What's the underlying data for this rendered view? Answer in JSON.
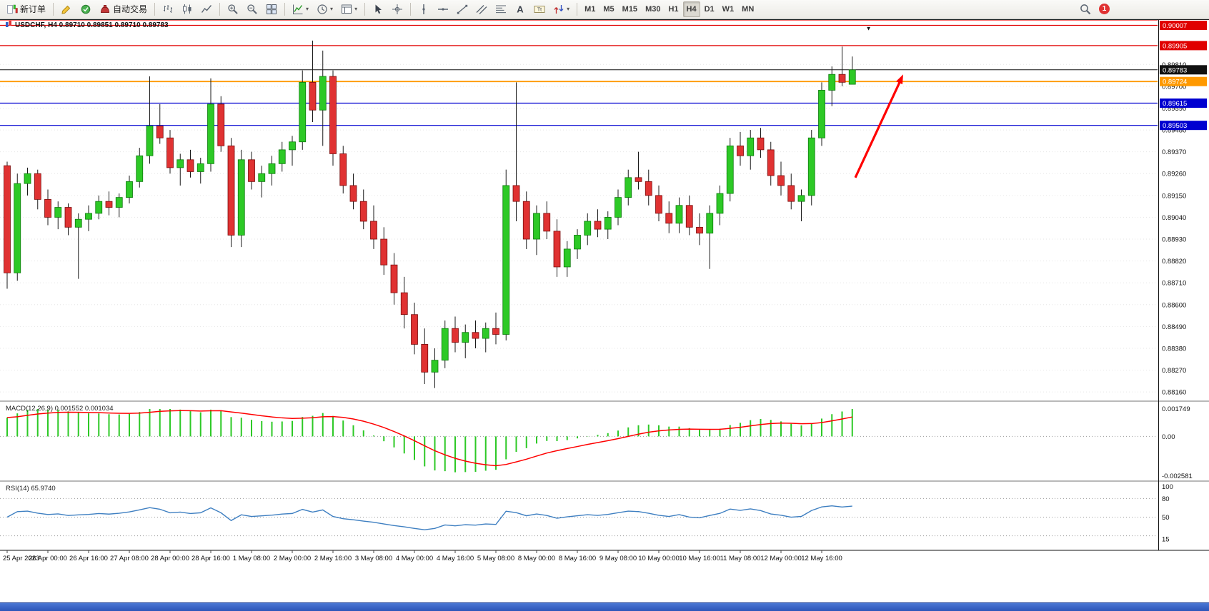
{
  "toolbar": {
    "notification_count": "1",
    "groups": [
      {
        "items": [
          {
            "name": "new-order-button",
            "icon": "new-order",
            "label": "新订单"
          }
        ]
      },
      {
        "items": [
          {
            "name": "metaeditor-button",
            "icon": "metaeditor"
          },
          {
            "name": "market-watch-button",
            "icon": "market"
          },
          {
            "name": "auto-trading-button",
            "icon": "autotrade",
            "label": "自动交易"
          }
        ]
      },
      {
        "items": [
          {
            "name": "bar-chart-mode-button",
            "icon": "bar-chart"
          },
          {
            "name": "candlestick-mode-button",
            "icon": "candlestick"
          },
          {
            "name": "line-chart-mode-button",
            "icon": "line-chart"
          }
        ]
      },
      {
        "items": [
          {
            "name": "zoom-in-button",
            "icon": "zoom-in"
          },
          {
            "name": "zoom-out-button",
            "icon": "zoom-out"
          },
          {
            "name": "tile-windows-button",
            "icon": "tile-windows"
          }
        ]
      },
      {
        "items": [
          {
            "name": "indicators-dropdown",
            "icon": "indicators",
            "caret": true
          },
          {
            "name": "periods-dropdown",
            "icon": "periods",
            "caret": true
          },
          {
            "name": "templates-dropdown",
            "icon": "templates",
            "caret": true
          }
        ]
      },
      {
        "items": [
          {
            "name": "cursor-tool-button",
            "icon": "cursor"
          },
          {
            "name": "crosshair-tool-button",
            "icon": "crosshair"
          }
        ]
      },
      {
        "items": [
          {
            "name": "vertical-line-tool",
            "icon": "vertical-line"
          },
          {
            "name": "horizontal-line-tool",
            "icon": "horizontal-line"
          },
          {
            "name": "trendline-tool",
            "icon": "trendline"
          },
          {
            "name": "channel-tool",
            "icon": "channel"
          },
          {
            "name": "fibonacci-tool",
            "icon": "fibonacci"
          },
          {
            "name": "text-tool",
            "icon": "text"
          },
          {
            "name": "label-tool",
            "icon": "text-label"
          },
          {
            "name": "arrows-tool",
            "icon": "arrows",
            "caret": true
          }
        ]
      },
      {
        "items": [
          {
            "name": "tf-m1-button",
            "label": "M1",
            "tf": true
          },
          {
            "name": "tf-m5-button",
            "label": "M5",
            "tf": true
          },
          {
            "name": "tf-m15-button",
            "label": "M15",
            "tf": true
          },
          {
            "name": "tf-m30-button",
            "label": "M30",
            "tf": true
          },
          {
            "name": "tf-h1-button",
            "label": "H1",
            "tf": true
          },
          {
            "name": "tf-h4-button",
            "label": "H4",
            "tf": true,
            "active": true
          },
          {
            "name": "tf-d1-button",
            "label": "D1",
            "tf": true
          },
          {
            "name": "tf-w1-button",
            "label": "W1",
            "tf": true
          },
          {
            "name": "tf-mn-button",
            "label": "MN",
            "tf": true
          }
        ]
      },
      {
        "align": "right",
        "items": [
          {
            "name": "search-button",
            "icon": "search"
          },
          {
            "name": "notifications-button",
            "badge": "1"
          }
        ]
      }
    ]
  },
  "chart": {
    "title": "USDCHF, H4 0.89710 0.89851 0.89710 0.89783",
    "y_ticks": [
      "0.89810",
      "0.89700",
      "0.89590",
      "0.89480",
      "0.89370",
      "0.89260",
      "0.89150",
      "0.89040",
      "0.88930",
      "0.88820",
      "0.88710",
      "0.88600",
      "0.88490",
      "0.88380",
      "0.88270",
      "0.88160"
    ]
  },
  "macd_panel": {
    "title": "MACD(12,26,9)",
    "value_main": "0.001552",
    "value_signal": "0.001034",
    "y_ticks": [
      "0.001749",
      "0.00",
      "-0.002581"
    ]
  },
  "rsi_panel": {
    "title": "RSI(14)",
    "value": "65.9740",
    "y_ticks": [
      "100",
      "80",
      "50",
      "15"
    ]
  },
  "chart_data": [
    {
      "type": "candlestick",
      "title": "USDCHF H4",
      "ylim": [
        0.88121,
        0.90034
      ],
      "x_tick_step": 4,
      "x_tick_labels": [
        "25 Apr 2023",
        "26 Apr 00:00",
        "26 Apr 16:00",
        "27 Apr 08:00",
        "28 Apr 00:00",
        "28 Apr 16:00",
        "1 May 08:00",
        "2 May 00:00",
        "2 May 16:00",
        "3 May 08:00",
        "4 May 00:00",
        "4 May 16:00",
        "5 May 08:00",
        "8 May 00:00",
        "8 May 16:00",
        "9 May 08:00",
        "10 May 00:00",
        "10 May 16:00",
        "11 May 08:00",
        "12 May 00:00",
        "12 May 16:00"
      ],
      "colors": {
        "up": "#2dc926",
        "down": "#e03232",
        "wick": "#1a1a1a"
      },
      "levels": [
        {
          "price": 0.90034,
          "label": "",
          "color": "#e00000"
        },
        {
          "price": 0.90007,
          "label": "0.90007",
          "color": "#e00000"
        },
        {
          "price": 0.89905,
          "label": "0.89905",
          "color": "#e00000"
        },
        {
          "price": 0.89783,
          "label": "0.89783",
          "color": "#111111",
          "role": "current"
        },
        {
          "price": 0.89724,
          "label": "0.89724",
          "color": "#ff9900"
        },
        {
          "price": 0.89615,
          "label": "0.89615",
          "color": "#0000d0"
        },
        {
          "price": 0.89503,
          "label": "0.89503",
          "color": "#0000d0"
        }
      ],
      "annotations": [
        {
          "type": "arrow",
          "from": {
            "bar": 83.3,
            "price": 0.8924
          },
          "to": {
            "bar": 88.0,
            "price": 0.8976
          },
          "color": "#ff0000"
        },
        {
          "type": "marker",
          "glyph": "▼",
          "bar": 84.6,
          "price": 0.9001
        }
      ],
      "ohlc": [
        [
          0.893,
          0.8932,
          0.8868,
          0.8876
        ],
        [
          0.8876,
          0.8926,
          0.8872,
          0.8921
        ],
        [
          0.8921,
          0.8929,
          0.8915,
          0.8926
        ],
        [
          0.8926,
          0.8928,
          0.8908,
          0.8913
        ],
        [
          0.8913,
          0.8918,
          0.89,
          0.8904
        ],
        [
          0.8904,
          0.8912,
          0.8898,
          0.8909
        ],
        [
          0.8909,
          0.8911,
          0.8895,
          0.8899
        ],
        [
          0.8899,
          0.8906,
          0.8873,
          0.8903
        ],
        [
          0.8903,
          0.891,
          0.8897,
          0.8906
        ],
        [
          0.8906,
          0.8915,
          0.8903,
          0.8912
        ],
        [
          0.8912,
          0.8917,
          0.8905,
          0.8909
        ],
        [
          0.8909,
          0.8916,
          0.8904,
          0.8914
        ],
        [
          0.8914,
          0.8925,
          0.8911,
          0.8922
        ],
        [
          0.8922,
          0.8939,
          0.8919,
          0.8935
        ],
        [
          0.8935,
          0.8975,
          0.8931,
          0.895
        ],
        [
          0.895,
          0.8961,
          0.8941,
          0.8944
        ],
        [
          0.8944,
          0.8948,
          0.8926,
          0.8929
        ],
        [
          0.8929,
          0.8936,
          0.892,
          0.8933
        ],
        [
          0.8933,
          0.8938,
          0.8924,
          0.8927
        ],
        [
          0.8927,
          0.8934,
          0.8921,
          0.8931
        ],
        [
          0.8931,
          0.8974,
          0.8927,
          0.8961
        ],
        [
          0.8961,
          0.8965,
          0.8937,
          0.894
        ],
        [
          0.894,
          0.8944,
          0.8889,
          0.8895
        ],
        [
          0.8895,
          0.8938,
          0.8889,
          0.8933
        ],
        [
          0.8933,
          0.8937,
          0.8918,
          0.8922
        ],
        [
          0.8922,
          0.893,
          0.8914,
          0.8926
        ],
        [
          0.8926,
          0.8935,
          0.892,
          0.8931
        ],
        [
          0.8931,
          0.8942,
          0.8927,
          0.8938
        ],
        [
          0.8938,
          0.8945,
          0.893,
          0.8942
        ],
        [
          0.8942,
          0.8978,
          0.8938,
          0.8972
        ],
        [
          0.8972,
          0.8993,
          0.8952,
          0.8958
        ],
        [
          0.8958,
          0.8988,
          0.894,
          0.8975
        ],
        [
          0.8975,
          0.8978,
          0.893,
          0.8936
        ],
        [
          0.8936,
          0.894,
          0.8916,
          0.892
        ],
        [
          0.892,
          0.8926,
          0.8908,
          0.8912
        ],
        [
          0.8912,
          0.8918,
          0.8898,
          0.8902
        ],
        [
          0.8902,
          0.891,
          0.8888,
          0.8893
        ],
        [
          0.8893,
          0.8899,
          0.8875,
          0.888
        ],
        [
          0.888,
          0.8886,
          0.886,
          0.8866
        ],
        [
          0.8866,
          0.8874,
          0.8848,
          0.8855
        ],
        [
          0.8855,
          0.8861,
          0.8835,
          0.884
        ],
        [
          0.884,
          0.8848,
          0.882,
          0.8826
        ],
        [
          0.8826,
          0.8838,
          0.8818,
          0.8832
        ],
        [
          0.8832,
          0.8852,
          0.8828,
          0.8848
        ],
        [
          0.8848,
          0.8854,
          0.8836,
          0.8841
        ],
        [
          0.8841,
          0.885,
          0.8833,
          0.8846
        ],
        [
          0.8846,
          0.8852,
          0.8838,
          0.8843
        ],
        [
          0.8843,
          0.8851,
          0.8836,
          0.8848
        ],
        [
          0.8848,
          0.8856,
          0.884,
          0.8845
        ],
        [
          0.8845,
          0.8928,
          0.8842,
          0.892
        ],
        [
          0.892,
          0.8972,
          0.8902,
          0.8912
        ],
        [
          0.8912,
          0.8917,
          0.8888,
          0.8893
        ],
        [
          0.8893,
          0.891,
          0.8885,
          0.8906
        ],
        [
          0.8906,
          0.8912,
          0.8893,
          0.8897
        ],
        [
          0.8897,
          0.8903,
          0.8874,
          0.8879
        ],
        [
          0.8879,
          0.8892,
          0.8874,
          0.8888
        ],
        [
          0.8888,
          0.8898,
          0.8883,
          0.8895
        ],
        [
          0.8895,
          0.8906,
          0.889,
          0.8902
        ],
        [
          0.8902,
          0.8908,
          0.8894,
          0.8898
        ],
        [
          0.8898,
          0.8907,
          0.8893,
          0.8904
        ],
        [
          0.8904,
          0.8918,
          0.89,
          0.8914
        ],
        [
          0.8914,
          0.8928,
          0.891,
          0.8924
        ],
        [
          0.8924,
          0.8937,
          0.8918,
          0.8922
        ],
        [
          0.8922,
          0.8928,
          0.891,
          0.8915
        ],
        [
          0.8915,
          0.892,
          0.8902,
          0.8906
        ],
        [
          0.8906,
          0.8912,
          0.8896,
          0.8901
        ],
        [
          0.8901,
          0.8914,
          0.8896,
          0.891
        ],
        [
          0.891,
          0.8915,
          0.8895,
          0.8899
        ],
        [
          0.8899,
          0.8906,
          0.889,
          0.8896
        ],
        [
          0.8896,
          0.891,
          0.8878,
          0.8906
        ],
        [
          0.8906,
          0.892,
          0.89,
          0.8916
        ],
        [
          0.8916,
          0.8944,
          0.8912,
          0.894
        ],
        [
          0.894,
          0.8947,
          0.893,
          0.8935
        ],
        [
          0.8935,
          0.8948,
          0.8928,
          0.8944
        ],
        [
          0.8944,
          0.8949,
          0.8934,
          0.8938
        ],
        [
          0.8938,
          0.8942,
          0.892,
          0.8925
        ],
        [
          0.8925,
          0.8932,
          0.8915,
          0.892
        ],
        [
          0.892,
          0.8926,
          0.8908,
          0.8912
        ],
        [
          0.8912,
          0.8918,
          0.8902,
          0.8915
        ],
        [
          0.8915,
          0.8948,
          0.891,
          0.8944
        ],
        [
          0.8944,
          0.8972,
          0.894,
          0.8968
        ],
        [
          0.8968,
          0.898,
          0.896,
          0.8976
        ],
        [
          0.8976,
          0.899,
          0.897,
          0.8972
        ],
        [
          0.8971,
          0.8985,
          0.8971,
          0.89783
        ]
      ]
    },
    {
      "type": "bar",
      "name": "MACD(12,26,9)",
      "derived_from": "ohlc",
      "params": [
        12,
        26,
        9
      ],
      "visible_range": [
        -0.002581,
        0.001749
      ],
      "current_main": 0.001552,
      "current_signal": 0.001034,
      "colors": {
        "histogram": "#2dc926",
        "signal": "#ff0000"
      }
    },
    {
      "type": "line",
      "name": "RSI(14)",
      "derived_from": "ohlc",
      "period": 14,
      "current": 65.974,
      "scale_min": 15,
      "scale_max": 100,
      "levels": [
        80,
        50,
        20
      ],
      "color": "#3e7fc1"
    }
  ],
  "taskbar_color": "#3a66c8"
}
